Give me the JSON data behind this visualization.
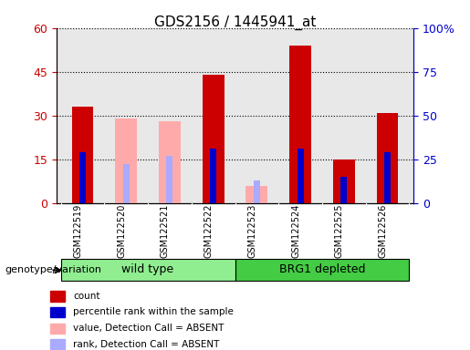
{
  "title": "GDS2156 / 1445941_at",
  "samples": [
    "GSM122519",
    "GSM122520",
    "GSM122521",
    "GSM122522",
    "GSM122523",
    "GSM122524",
    "GSM122525",
    "GSM122526"
  ],
  "count_values": [
    33,
    null,
    null,
    44,
    null,
    54,
    15,
    31
  ],
  "percentile_rank": [
    29,
    null,
    null,
    31,
    null,
    31,
    15,
    29
  ],
  "absent_value": [
    null,
    29,
    28,
    null,
    6,
    null,
    null,
    null
  ],
  "absent_rank": [
    null,
    22,
    27,
    null,
    13,
    null,
    null,
    null
  ],
  "ylim_left": [
    0,
    60
  ],
  "ylim_right": [
    0,
    100
  ],
  "yticks_left": [
    0,
    15,
    30,
    45,
    60
  ],
  "yticks_right": [
    0,
    25,
    50,
    75,
    100
  ],
  "right_labels": [
    "0",
    "25",
    "50",
    "75",
    "100%"
  ],
  "bar_width": 0.4,
  "count_color": "#cc0000",
  "rank_color": "#0000cc",
  "absent_value_color": "#ffaaaa",
  "absent_rank_color": "#aaaaff",
  "legend_labels": [
    "count",
    "percentile rank within the sample",
    "value, Detection Call = ABSENT",
    "rank, Detection Call = ABSENT"
  ],
  "legend_colors": [
    "#cc0000",
    "#0000cc",
    "#ffaaaa",
    "#aaaaff"
  ],
  "genotype_label": "genotype/variation",
  "bg_color": "#d3d3d3",
  "plot_bg_color": "#e8e8e8",
  "wildtype_color": "#90ee90",
  "brg1_color": "#44cc44"
}
